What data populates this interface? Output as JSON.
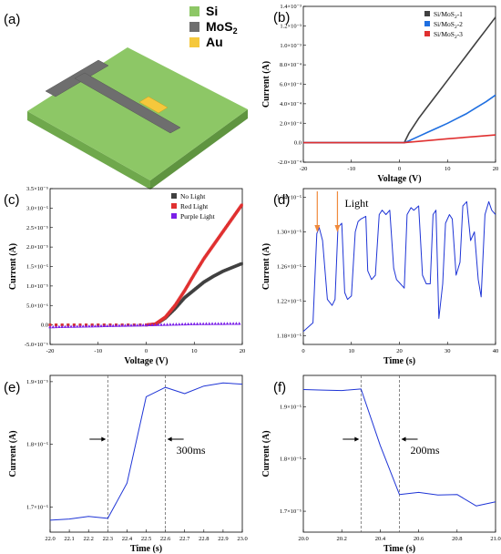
{
  "figure": {
    "schematic": {
      "panel": "(a)",
      "legend": [
        {
          "label": "Si",
          "color": "#8dc766"
        },
        {
          "label": "MoS",
          "sub": "2",
          "color": "#6e6e6e"
        },
        {
          "label": "Au",
          "color": "#f5c83c"
        }
      ]
    }
  },
  "chart_data": [
    {
      "panel": "(b)",
      "type": "line",
      "xlabel": "Voltage (V)",
      "ylabel": "Current (A)",
      "xlim": [
        -20,
        20
      ],
      "ylim": [
        -0.0002,
        0.0014
      ],
      "xticks": [
        -20,
        -10,
        0,
        10,
        20
      ],
      "yticks": [
        -0.0002,
        0,
        0.0002,
        0.0004,
        0.0006,
        0.0008,
        0.001,
        0.0012,
        0.0014
      ],
      "ytick_labels": [
        "-2.0×10⁻⁴",
        "0.0",
        "2.0×10⁻⁴",
        "4.0×10⁻⁴",
        "6.0×10⁻⁴",
        "8.0×10⁻⁴",
        "1.0×10⁻³",
        "1.2×10⁻³",
        "1.4×10⁻³"
      ],
      "legend_position": "top-right",
      "series": [
        {
          "name": "Si/MoS2-1",
          "color": "#404040",
          "x": [
            -20,
            0,
            1,
            2,
            4,
            6,
            8,
            10,
            12,
            14,
            16,
            18,
            20
          ],
          "values": [
            0,
            0,
            0,
            0.0001,
            0.00025,
            0.00038,
            0.00051,
            0.00064,
            0.00077,
            0.0009,
            0.00103,
            0.00116,
            0.00129
          ]
        },
        {
          "name": "Si/MoS2-2",
          "color": "#1f6fe0",
          "x": [
            -20,
            0,
            1,
            2,
            4,
            6,
            8,
            10,
            12,
            14,
            16,
            18,
            20
          ],
          "values": [
            0,
            0,
            0,
            2e-05,
            6.5e-05,
            0.00011,
            0.000155,
            0.0002,
            0.00025,
            0.0003,
            0.00036,
            0.00042,
            0.00049
          ]
        },
        {
          "name": "Si/MoS2-3",
          "color": "#e03030",
          "x": [
            -20,
            0,
            1,
            2,
            5,
            10,
            15,
            20
          ],
          "values": [
            0,
            0,
            0,
            5e-06,
            1.8e-05,
            4e-05,
            6e-05,
            8e-05
          ]
        }
      ]
    },
    {
      "panel": "(c)",
      "type": "scatter",
      "xlabel": "Voltage (V)",
      "ylabel": "Current (A)",
      "xlim": [
        -20,
        20
      ],
      "ylim": [
        -5e-06,
        3.5e-05
      ],
      "xticks": [
        -20,
        -10,
        0,
        10,
        20
      ],
      "yticks": [
        -5e-06,
        0,
        5e-06,
        1e-05,
        1.5e-05,
        2e-05,
        2.5e-05,
        3e-05,
        3.5e-05
      ],
      "ytick_labels": [
        "-5.0×10⁻⁶",
        "0.0",
        "5.0×10⁻⁶",
        "1.0×10⁻⁵",
        "1.5×10⁻⁵",
        "2.0×10⁻⁵",
        "2.5×10⁻⁵",
        "3.0×10⁻⁵",
        "3.5×10⁻⁵"
      ],
      "legend_position": "top-right",
      "series": [
        {
          "name": "No Light",
          "color": "#404040",
          "x": [
            -20,
            0,
            2,
            4,
            6,
            8,
            10,
            12,
            14,
            16,
            18,
            20
          ],
          "values": [
            0,
            0,
            2e-07,
            1.8e-06,
            4.2e-06,
            7e-06,
            9e-06,
            1.1e-05,
            1.25e-05,
            1.38e-05,
            1.48e-05,
            1.58e-05
          ]
        },
        {
          "name": "Red Light",
          "color": "#e03030",
          "x": [
            -20,
            0,
            2,
            4,
            6,
            8,
            10,
            12,
            14,
            16,
            18,
            20
          ],
          "values": [
            0,
            0,
            3e-07,
            2e-06,
            5e-06,
            8.8e-06,
            1.3e-05,
            1.7e-05,
            2.05e-05,
            2.4e-05,
            2.75e-05,
            3.1e-05
          ]
        },
        {
          "name": "Purple Light",
          "color": "#7a1fe8",
          "x": [
            -20,
            -10,
            0,
            10,
            20
          ],
          "values": [
            -5e-07,
            -2.5e-07,
            0,
            3e-07,
            4e-07
          ]
        }
      ]
    },
    {
      "panel": "(d)",
      "type": "line",
      "xlabel": "Time (s)",
      "ylabel": "Current (A)",
      "xlim": [
        0,
        40
      ],
      "ylim": [
        1.17e-05,
        1.35e-05
      ],
      "xticks": [
        0,
        10,
        20,
        30,
        40
      ],
      "yticks": [
        1.18e-05,
        1.22e-05,
        1.26e-05,
        1.3e-05,
        1.34e-05
      ],
      "ytick_labels": [
        "1.18×10⁻⁵",
        "1.22×10⁻⁵",
        "1.26×10⁻⁵",
        "1.30×10⁻⁵",
        "1.34×10⁻⁵"
      ],
      "annotation": "Light",
      "arrows_at_time": [
        2.9,
        7.1
      ],
      "arrow_color": "#f08a3c",
      "series": [
        {
          "color": "#1f35d6",
          "x": [
            0,
            1.0,
            2.0,
            2.8,
            3.3,
            4.0,
            5.0,
            6.0,
            6.6,
            7.2,
            8.0,
            8.6,
            9.2,
            10.0,
            10.8,
            11.4,
            12.0,
            13.0,
            13.4,
            14.2,
            15.0,
            15.8,
            16.4,
            17.2,
            18.0,
            18.8,
            19.4,
            20.2,
            21.0,
            21.6,
            22.4,
            23.0,
            24.0,
            24.8,
            25.6,
            26.4,
            27.0,
            27.6,
            28.2,
            29.0,
            29.6,
            30.4,
            31.0,
            31.8,
            32.6,
            33.2,
            34.0,
            34.8,
            35.6,
            36.4,
            37.0,
            37.8,
            38.6,
            39.2,
            40.0
          ],
          "values": [
            1.185e-05,
            1.19e-05,
            1.195e-05,
            1.298e-05,
            1.305e-05,
            1.29e-05,
            1.222e-05,
            1.215e-05,
            1.222e-05,
            1.305e-05,
            1.31e-05,
            1.23e-05,
            1.222e-05,
            1.226e-05,
            1.3e-05,
            1.312e-05,
            1.315e-05,
            1.318e-05,
            1.255e-05,
            1.245e-05,
            1.25e-05,
            1.32e-05,
            1.325e-05,
            1.32e-05,
            1.325e-05,
            1.258e-05,
            1.245e-05,
            1.24e-05,
            1.235e-05,
            1.32e-05,
            1.328e-05,
            1.325e-05,
            1.33e-05,
            1.25e-05,
            1.24e-05,
            1.24e-05,
            1.32e-05,
            1.325e-05,
            1.2e-05,
            1.24e-05,
            1.31e-05,
            1.32e-05,
            1.315e-05,
            1.25e-05,
            1.265e-05,
            1.33e-05,
            1.335e-05,
            1.29e-05,
            1.3e-05,
            1.245e-05,
            1.225e-05,
            1.32e-05,
            1.335e-05,
            1.325e-05,
            1.32e-05
          ]
        }
      ]
    },
    {
      "panel": "(e)",
      "type": "line",
      "xlabel": "Time (s)",
      "ylabel": "Current (A)",
      "xlim": [
        22.0,
        23.0
      ],
      "ylim": [
        1.66e-05,
        1.91e-05
      ],
      "xticks": [
        22.0,
        22.1,
        22.2,
        22.3,
        22.4,
        22.5,
        22.6,
        22.7,
        22.8,
        22.9,
        23.0
      ],
      "yticks": [
        1.7e-05,
        1.8e-05,
        1.9e-05
      ],
      "ytick_labels": [
        "1.7×10⁻⁵",
        "1.8×10⁻⁵",
        "1.9×10⁻⁵"
      ],
      "vlines": [
        22.3,
        22.6
      ],
      "annotation": "300ms",
      "series": [
        {
          "color": "#1f35d6",
          "x": [
            22.0,
            22.1,
            22.2,
            22.3,
            22.4,
            22.5,
            22.6,
            22.7,
            22.8,
            22.9,
            23.0
          ],
          "values": [
            1.679e-05,
            1.681e-05,
            1.685e-05,
            1.682e-05,
            1.738e-05,
            1.876e-05,
            1.891e-05,
            1.881e-05,
            1.893e-05,
            1.898e-05,
            1.896e-05
          ]
        }
      ]
    },
    {
      "panel": "(f)",
      "type": "line",
      "xlabel": "Time (s)",
      "ylabel": "Current (A)",
      "xlim": [
        20.0,
        21.0
      ],
      "ylim": [
        1.66e-05,
        1.96e-05
      ],
      "xticks": [
        20.0,
        20.2,
        20.4,
        20.6,
        20.8,
        21.0
      ],
      "yticks": [
        1.7e-05,
        1.8e-05,
        1.9e-05
      ],
      "ytick_labels": [
        "1.7×10⁻⁵",
        "1.8×10⁻⁵",
        "1.9×10⁻⁵"
      ],
      "vlines": [
        20.3,
        20.5
      ],
      "annotation": "200ms",
      "series": [
        {
          "color": "#1f35d6",
          "x": [
            20.0,
            20.1,
            20.2,
            20.3,
            20.4,
            20.5,
            20.6,
            20.7,
            20.8,
            20.9,
            21.0
          ],
          "values": [
            1.933e-05,
            1.932e-05,
            1.931e-05,
            1.934e-05,
            1.826e-05,
            1.732e-05,
            1.736e-05,
            1.731e-05,
            1.732e-05,
            1.71e-05,
            1.718e-05
          ]
        }
      ]
    }
  ]
}
